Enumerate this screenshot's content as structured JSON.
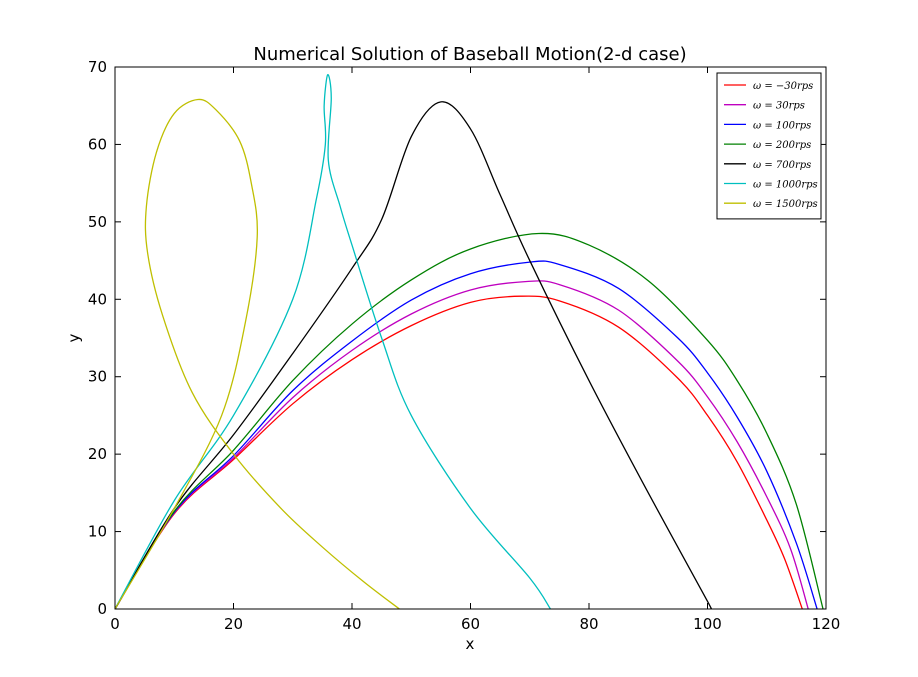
{
  "chart_data": {
    "type": "line",
    "title": "Numerical Solution of Baseball Motion(2-d case)",
    "xlabel": "x",
    "ylabel": "y",
    "xlim": [
      0,
      120
    ],
    "ylim": [
      0,
      70
    ],
    "xticks": [
      0,
      20,
      40,
      60,
      80,
      100,
      120
    ],
    "yticks": [
      0,
      10,
      20,
      30,
      40,
      50,
      60,
      70
    ],
    "grid": false,
    "legend_position": "top-right",
    "series": [
      {
        "name": "ω = −30rps",
        "color": "#ff0000",
        "points": [
          [
            0,
            0
          ],
          [
            10,
            12.3
          ],
          [
            20,
            19.3
          ],
          [
            30,
            26.5
          ],
          [
            40,
            32.2
          ],
          [
            50,
            36.6
          ],
          [
            60,
            39.6
          ],
          [
            68.5,
            40.4
          ],
          [
            75,
            39.8
          ],
          [
            85,
            36.4
          ],
          [
            95,
            29.8
          ],
          [
            100,
            25.0
          ],
          [
            105,
            19.0
          ],
          [
            110,
            11.5
          ],
          [
            113,
            6.5
          ],
          [
            116,
            0
          ]
        ]
      },
      {
        "name": "ω = 30rps",
        "color": "#bf00bf",
        "points": [
          [
            0,
            0
          ],
          [
            10,
            12.4
          ],
          [
            20,
            19.5
          ],
          [
            30,
            27.3
          ],
          [
            40,
            33.4
          ],
          [
            50,
            38.1
          ],
          [
            60,
            41.2
          ],
          [
            69.5,
            42.3
          ],
          [
            75,
            41.9
          ],
          [
            85,
            38.6
          ],
          [
            95,
            32.0
          ],
          [
            100,
            27.4
          ],
          [
            105,
            21.6
          ],
          [
            110,
            14.5
          ],
          [
            114,
            7.8
          ],
          [
            117,
            0
          ]
        ]
      },
      {
        "name": "ω = 100rps",
        "color": "#0000ff",
        "points": [
          [
            0,
            0
          ],
          [
            10,
            12.5
          ],
          [
            20,
            19.8
          ],
          [
            30,
            28.2
          ],
          [
            40,
            34.6
          ],
          [
            50,
            39.9
          ],
          [
            60,
            43.3
          ],
          [
            70,
            44.8
          ],
          [
            75,
            44.5
          ],
          [
            85,
            41.4
          ],
          [
            95,
            35.0
          ],
          [
            100,
            30.5
          ],
          [
            105,
            24.8
          ],
          [
            110,
            17.8
          ],
          [
            115,
            8.5
          ],
          [
            118.5,
            0
          ]
        ]
      },
      {
        "name": "ω = 200rps",
        "color": "#008000",
        "points": [
          [
            0,
            0
          ],
          [
            10,
            12.6
          ],
          [
            20,
            20.5
          ],
          [
            30,
            29.5
          ],
          [
            40,
            36.8
          ],
          [
            50,
            42.5
          ],
          [
            60,
            46.5
          ],
          [
            71.5,
            48.5
          ],
          [
            80,
            47.0
          ],
          [
            90,
            42.4
          ],
          [
            100,
            34.7
          ],
          [
            105,
            29.5
          ],
          [
            110,
            22.7
          ],
          [
            115,
            13.5
          ],
          [
            119.5,
            0
          ]
        ]
      },
      {
        "name": "ω = 700rps",
        "color": "#000000",
        "points": [
          [
            0,
            0
          ],
          [
            10,
            13.0
          ],
          [
            20,
            22.5
          ],
          [
            30,
            33.0
          ],
          [
            40,
            44.0
          ],
          [
            45,
            50.3
          ],
          [
            50,
            61.0
          ],
          [
            55,
            65.5
          ],
          [
            60,
            62.0
          ],
          [
            65,
            53.5
          ],
          [
            70,
            45.0
          ],
          [
            80,
            29.5
          ],
          [
            90,
            15.0
          ],
          [
            100,
            1.0
          ],
          [
            100.5,
            0
          ]
        ]
      },
      {
        "name": "ω = 1000rps",
        "color": "#00bfbf",
        "points": [
          [
            0,
            0
          ],
          [
            10,
            14.0
          ],
          [
            20,
            25.0
          ],
          [
            30,
            40.0
          ],
          [
            34,
            53.0
          ],
          [
            35.5,
            60.0
          ],
          [
            35.3,
            65.0
          ],
          [
            35.9,
            69.0
          ],
          [
            36.5,
            66.0
          ],
          [
            36.0,
            58.0
          ],
          [
            38.0,
            52.0
          ],
          [
            40,
            47.0
          ],
          [
            45,
            35.0
          ],
          [
            50,
            25.0
          ],
          [
            60,
            13.0
          ],
          [
            70,
            4.0
          ],
          [
            73.5,
            0
          ]
        ]
      },
      {
        "name": "ω = 1500rps",
        "color": "#bfbf00",
        "points": [
          [
            0,
            0
          ],
          [
            10,
            13.0
          ],
          [
            18,
            25.0
          ],
          [
            22,
            37.0
          ],
          [
            24,
            48.0
          ],
          [
            23,
            55.0
          ],
          [
            21,
            60.5
          ],
          [
            17,
            64.5
          ],
          [
            14,
            65.8
          ],
          [
            10,
            64.0
          ],
          [
            7,
            59.0
          ],
          [
            5.3,
            52.0
          ],
          [
            5.5,
            46.0
          ],
          [
            8,
            38.0
          ],
          [
            13,
            28.0
          ],
          [
            20,
            20.0
          ],
          [
            28,
            13.0
          ],
          [
            35,
            8.0
          ],
          [
            42,
            3.5
          ],
          [
            48,
            0
          ]
        ]
      }
    ]
  }
}
